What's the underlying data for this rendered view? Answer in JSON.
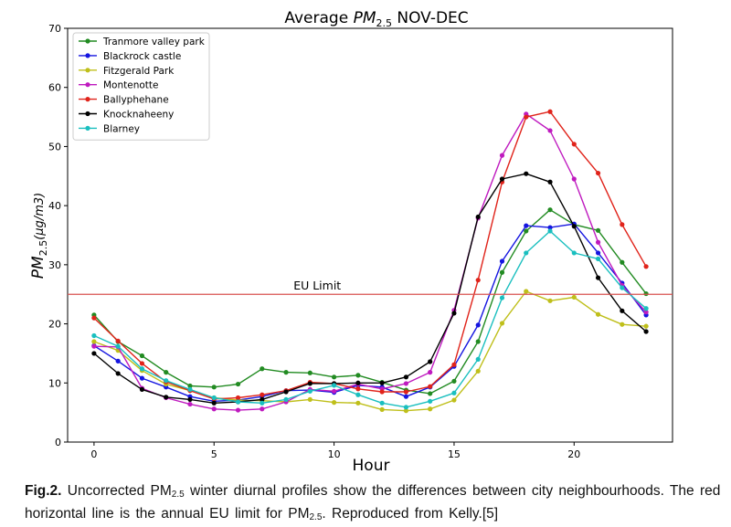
{
  "chart_data": {
    "type": "line",
    "title_prefix": "Average ",
    "title_pm": "PM",
    "title_sub": "2.5",
    "title_suffix": " NOV-DEC",
    "xlabel": "Hour",
    "ylabel_pm": "PM",
    "ylabel_sub": "2.5",
    "ylabel_unit": "(μg/m3)",
    "xlim": [
      -1.1,
      24.1
    ],
    "ylim": [
      0,
      70
    ],
    "xticks": [
      0,
      5,
      10,
      15,
      20
    ],
    "yticks": [
      0,
      10,
      20,
      30,
      40,
      50,
      60,
      70
    ],
    "grid": false,
    "legend_position": "top-left",
    "x": [
      0,
      1,
      2,
      3,
      4,
      5,
      6,
      7,
      8,
      9,
      10,
      11,
      12,
      13,
      14,
      15,
      16,
      17,
      18,
      19,
      20,
      21,
      22,
      23
    ],
    "series": [
      {
        "name": "Tranmore valley park",
        "color": "#228B22",
        "values": [
          21.5,
          17.0,
          14.6,
          11.8,
          9.5,
          9.3,
          9.8,
          12.4,
          11.8,
          11.7,
          11.0,
          11.3,
          10.1,
          8.8,
          8.2,
          10.3,
          17.0,
          28.7,
          35.7,
          39.3,
          36.8,
          35.8,
          30.4,
          25.1
        ]
      },
      {
        "name": "Blackrock castle",
        "color": "#1515E0",
        "values": [
          16.3,
          13.7,
          10.8,
          9.3,
          7.7,
          6.9,
          7.1,
          7.7,
          8.7,
          8.8,
          8.4,
          9.6,
          9.3,
          7.7,
          9.3,
          12.8,
          19.8,
          30.6,
          36.6,
          36.3,
          36.9,
          32.0,
          26.9,
          21.5
        ]
      },
      {
        "name": "Fitzgerald Park",
        "color": "#BFBF1A",
        "values": [
          17.0,
          15.5,
          12.1,
          9.8,
          8.7,
          7.5,
          7.1,
          7.0,
          6.8,
          7.2,
          6.7,
          6.6,
          5.5,
          5.3,
          5.6,
          7.1,
          12.0,
          20.1,
          25.5,
          23.9,
          24.5,
          21.6,
          19.9,
          19.6
        ]
      },
      {
        "name": "Montenotte",
        "color": "#BF1ABF",
        "values": [
          16.2,
          16.1,
          9.1,
          7.5,
          6.4,
          5.6,
          5.4,
          5.6,
          6.8,
          8.9,
          8.6,
          9.8,
          9.0,
          9.9,
          11.8,
          22.3,
          37.9,
          48.5,
          55.5,
          52.7,
          44.5,
          33.8,
          26.5,
          22.0
        ]
      },
      {
        "name": "Ballyphehane",
        "color": "#E0231A",
        "values": [
          21.0,
          17.1,
          13.3,
          10.2,
          8.7,
          7.3,
          7.5,
          8.0,
          8.7,
          10.1,
          9.9,
          9.0,
          8.5,
          8.5,
          9.4,
          13.1,
          27.4,
          44.0,
          55.0,
          55.9,
          50.4,
          45.5,
          36.8,
          29.7
        ]
      },
      {
        "name": "Knocknaheeny",
        "color": "#000000",
        "values": [
          15.0,
          11.6,
          8.9,
          7.6,
          7.2,
          6.6,
          6.8,
          7.2,
          8.5,
          9.9,
          9.9,
          10.0,
          10.0,
          11.0,
          13.6,
          21.8,
          38.1,
          44.5,
          45.4,
          44.0,
          36.5,
          27.8,
          22.2,
          18.7
        ]
      },
      {
        "name": "Blarney",
        "color": "#1ABFBF",
        "values": [
          18.0,
          16.2,
          12.4,
          10.4,
          8.9,
          7.5,
          6.8,
          6.6,
          7.2,
          8.6,
          9.6,
          8.0,
          6.6,
          5.9,
          6.9,
          8.3,
          14.0,
          24.4,
          32.0,
          35.7,
          32.0,
          31.0,
          26.1,
          22.6
        ]
      }
    ],
    "reference_line": {
      "y": 25,
      "label": "EU Limit",
      "color": "#D9534F"
    }
  },
  "caption": {
    "fig_label": "Fig.2.",
    "text_1": " Uncorrected PM",
    "sub_1": "2.5",
    "text_2": " winter diurnal profiles show the differences between city neighbourhoods. The red horizontal line is the annual EU limit for PM",
    "sub_2": "2.5",
    "text_3": ". Reproduced from Kelly.[5]"
  }
}
